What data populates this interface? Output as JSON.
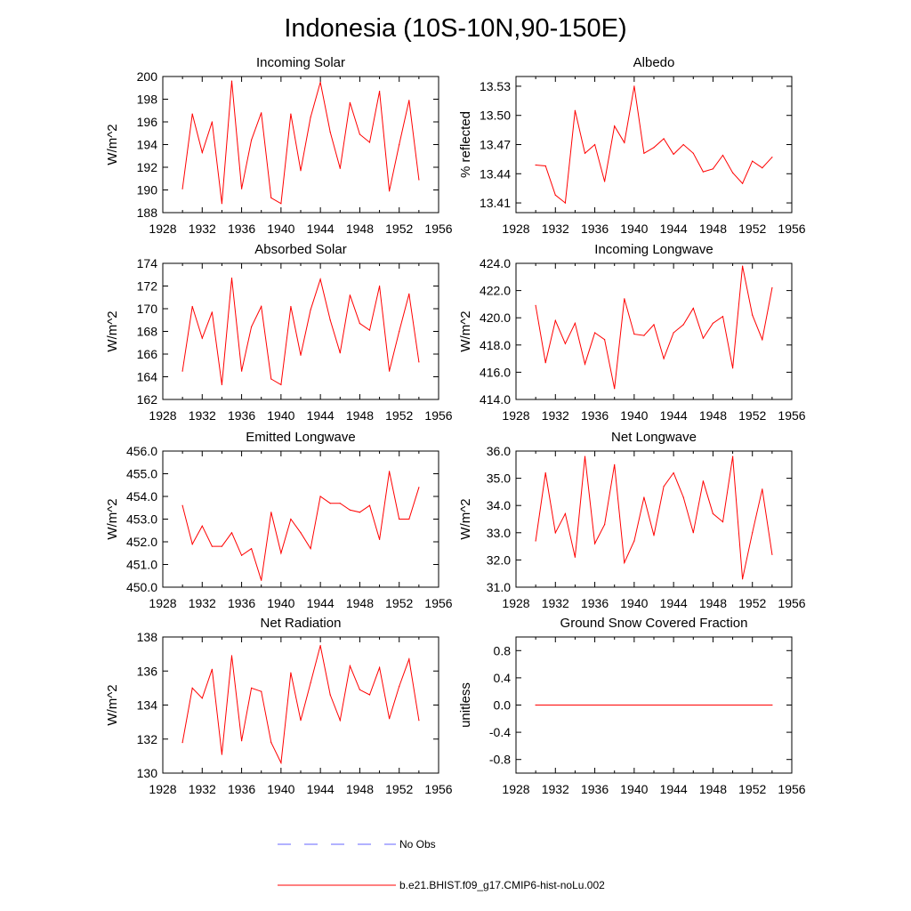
{
  "figure": {
    "title": "Indonesia (10S-10N,90-150E)"
  },
  "legend": {
    "placement": "bottom-center",
    "entries": [
      {
        "label": "No Obs",
        "color": "#6666ff",
        "style": "dashed"
      },
      {
        "label": "b.e21.BHIST.f09_g17.CMIP6-hist-noLu.002",
        "color": "#ff0000",
        "style": "solid"
      }
    ]
  },
  "chart_data": [
    {
      "type": "line",
      "title": "Incoming Solar",
      "ylabel": "W/m^2",
      "xlim": [
        1928,
        1956
      ],
      "ylim": [
        188,
        200
      ],
      "xticks": [
        "1928",
        "1932",
        "1936",
        "1940",
        "1944",
        "1948",
        "1952",
        "1956"
      ],
      "yticks": [
        "188",
        "190",
        "192",
        "194",
        "196",
        "198",
        "200"
      ],
      "grid": false,
      "series": [
        {
          "color": "#ff0000",
          "x": [
            1930,
            1931,
            1932,
            1933,
            1934,
            1935,
            1936,
            1937,
            1938,
            1939,
            1940,
            1941,
            1942,
            1943,
            1944,
            1945,
            1946,
            1947,
            1948,
            1949,
            1950,
            1951,
            1952,
            1953,
            1954
          ],
          "values": [
            190.1,
            196.7,
            193.3,
            196.0,
            188.8,
            199.6,
            190.1,
            194.4,
            196.8,
            189.3,
            188.8,
            196.7,
            191.7,
            196.4,
            199.5,
            195.1,
            191.9,
            197.7,
            194.9,
            194.2,
            198.7,
            189.9,
            194.0,
            197.9,
            190.9
          ]
        }
      ]
    },
    {
      "type": "line",
      "title": "Albedo",
      "ylabel": "% reflected",
      "xlim": [
        1928,
        1956
      ],
      "ylim": [
        13.4,
        13.54
      ],
      "xticks": [
        "1928",
        "1932",
        "1936",
        "1940",
        "1944",
        "1948",
        "1952",
        "1956"
      ],
      "yticks": [
        "13.41",
        "13.44",
        "13.47",
        "13.50",
        "13.53"
      ],
      "grid": false,
      "series": [
        {
          "color": "#ff0000",
          "x": [
            1930,
            1931,
            1932,
            1933,
            1934,
            1935,
            1936,
            1937,
            1938,
            1939,
            1940,
            1941,
            1942,
            1943,
            1944,
            1945,
            1946,
            1947,
            1948,
            1949,
            1950,
            1951,
            1952,
            1953,
            1954
          ],
          "values": [
            13.449,
            13.448,
            13.418,
            13.41,
            13.505,
            13.461,
            13.47,
            13.432,
            13.489,
            13.472,
            13.53,
            13.461,
            13.467,
            13.476,
            13.46,
            13.47,
            13.461,
            13.442,
            13.445,
            13.459,
            13.441,
            13.43,
            13.453,
            13.446,
            13.457
          ]
        }
      ]
    },
    {
      "type": "line",
      "title": "Absorbed Solar",
      "ylabel": "W/m^2",
      "xlim": [
        1928,
        1956
      ],
      "ylim": [
        162,
        174
      ],
      "xticks": [
        "1928",
        "1932",
        "1936",
        "1940",
        "1944",
        "1948",
        "1952",
        "1956"
      ],
      "yticks": [
        "162",
        "164",
        "166",
        "168",
        "170",
        "172",
        "174"
      ],
      "grid": false,
      "series": [
        {
          "color": "#ff0000",
          "x": [
            1930,
            1931,
            1932,
            1933,
            1934,
            1935,
            1936,
            1937,
            1938,
            1939,
            1940,
            1941,
            1942,
            1943,
            1944,
            1945,
            1946,
            1947,
            1948,
            1949,
            1950,
            1951,
            1952,
            1953,
            1954
          ],
          "values": [
            164.5,
            170.2,
            167.4,
            169.7,
            163.3,
            172.7,
            164.5,
            168.4,
            170.2,
            163.8,
            163.3,
            170.2,
            165.9,
            169.9,
            172.6,
            169.0,
            166.1,
            171.2,
            168.7,
            168.1,
            172.0,
            164.5,
            168.0,
            171.3,
            165.3
          ]
        }
      ]
    },
    {
      "type": "line",
      "title": "Incoming Longwave",
      "ylabel": "W/m^2",
      "xlim": [
        1928,
        1956
      ],
      "ylim": [
        414,
        424
      ],
      "xticks": [
        "1928",
        "1932",
        "1936",
        "1940",
        "1944",
        "1948",
        "1952",
        "1956"
      ],
      "yticks": [
        "414.0",
        "416.0",
        "418.0",
        "420.0",
        "422.0",
        "424.0"
      ],
      "grid": false,
      "series": [
        {
          "color": "#ff0000",
          "x": [
            1930,
            1931,
            1932,
            1933,
            1934,
            1935,
            1936,
            1937,
            1938,
            1939,
            1940,
            1941,
            1942,
            1943,
            1944,
            1945,
            1946,
            1947,
            1948,
            1949,
            1950,
            1951,
            1952,
            1953,
            1954
          ],
          "values": [
            420.9,
            416.7,
            419.8,
            418.1,
            419.6,
            416.6,
            418.9,
            418.4,
            414.8,
            421.4,
            418.8,
            418.7,
            419.5,
            417.0,
            418.9,
            419.5,
            420.7,
            418.5,
            419.6,
            420.1,
            416.3,
            423.8,
            420.2,
            418.4,
            422.2
          ]
        }
      ]
    },
    {
      "type": "line",
      "title": "Emitted Longwave",
      "ylabel": "W/m^2",
      "xlim": [
        1928,
        1956
      ],
      "ylim": [
        450,
        456
      ],
      "xticks": [
        "1928",
        "1932",
        "1936",
        "1940",
        "1944",
        "1948",
        "1952",
        "1956"
      ],
      "yticks": [
        "450.0",
        "451.0",
        "452.0",
        "453.0",
        "454.0",
        "455.0",
        "456.0"
      ],
      "grid": false,
      "series": [
        {
          "color": "#ff0000",
          "x": [
            1930,
            1931,
            1932,
            1933,
            1934,
            1935,
            1936,
            1937,
            1938,
            1939,
            1940,
            1941,
            1942,
            1943,
            1944,
            1945,
            1946,
            1947,
            1948,
            1949,
            1950,
            1951,
            1952,
            1953,
            1954
          ],
          "values": [
            453.6,
            451.9,
            452.7,
            451.8,
            451.8,
            452.4,
            451.4,
            451.7,
            450.3,
            453.3,
            451.5,
            453.0,
            452.4,
            451.7,
            454.0,
            453.7,
            453.7,
            453.4,
            453.3,
            453.6,
            452.1,
            455.1,
            453.0,
            453.0,
            454.4
          ]
        }
      ]
    },
    {
      "type": "line",
      "title": "Net Longwave",
      "ylabel": "W/m^2",
      "xlim": [
        1928,
        1956
      ],
      "ylim": [
        31,
        36
      ],
      "xticks": [
        "1928",
        "1932",
        "1936",
        "1940",
        "1944",
        "1948",
        "1952",
        "1956"
      ],
      "yticks": [
        "31.0",
        "32.0",
        "33.0",
        "34.0",
        "35.0",
        "36.0"
      ],
      "grid": false,
      "series": [
        {
          "color": "#ff0000",
          "x": [
            1930,
            1931,
            1932,
            1933,
            1934,
            1935,
            1936,
            1937,
            1938,
            1939,
            1940,
            1941,
            1942,
            1943,
            1944,
            1945,
            1946,
            1947,
            1948,
            1949,
            1950,
            1951,
            1952,
            1953,
            1954
          ],
          "values": [
            32.7,
            35.2,
            33.0,
            33.7,
            32.1,
            35.8,
            32.6,
            33.3,
            35.5,
            31.9,
            32.7,
            34.3,
            32.9,
            34.7,
            35.2,
            34.3,
            33.0,
            34.9,
            33.7,
            33.4,
            35.8,
            31.3,
            33.0,
            34.6,
            32.2
          ]
        }
      ]
    },
    {
      "type": "line",
      "title": "Net Radiation",
      "ylabel": "W/m^2",
      "xlim": [
        1928,
        1956
      ],
      "ylim": [
        130,
        138
      ],
      "xticks": [
        "1928",
        "1932",
        "1936",
        "1940",
        "1944",
        "1948",
        "1952",
        "1956"
      ],
      "yticks": [
        "130",
        "132",
        "134",
        "136",
        "138"
      ],
      "grid": false,
      "series": [
        {
          "color": "#ff0000",
          "x": [
            1930,
            1931,
            1932,
            1933,
            1934,
            1935,
            1936,
            1937,
            1938,
            1939,
            1940,
            1941,
            1942,
            1943,
            1944,
            1945,
            1946,
            1947,
            1948,
            1949,
            1950,
            1951,
            1952,
            1953,
            1954
          ],
          "values": [
            131.8,
            135.0,
            134.4,
            136.1,
            131.1,
            136.9,
            131.9,
            135.0,
            134.8,
            131.8,
            130.6,
            135.9,
            133.1,
            135.3,
            137.5,
            134.6,
            133.1,
            136.3,
            134.9,
            134.6,
            136.2,
            133.2,
            135.1,
            136.7,
            133.1
          ]
        }
      ]
    },
    {
      "type": "line",
      "title": "Ground Snow Covered Fraction",
      "ylabel": "unitless",
      "xlim": [
        1928,
        1956
      ],
      "ylim": [
        -1.0,
        1.0
      ],
      "xticks": [
        "1928",
        "1932",
        "1936",
        "1940",
        "1944",
        "1948",
        "1952",
        "1956"
      ],
      "yticks": [
        "-0.8",
        "-0.4",
        "0.0",
        "0.4",
        "0.8"
      ],
      "grid": false,
      "series": [
        {
          "color": "#ff0000",
          "x": [
            1930,
            1954
          ],
          "values": [
            0,
            0
          ]
        }
      ]
    }
  ]
}
